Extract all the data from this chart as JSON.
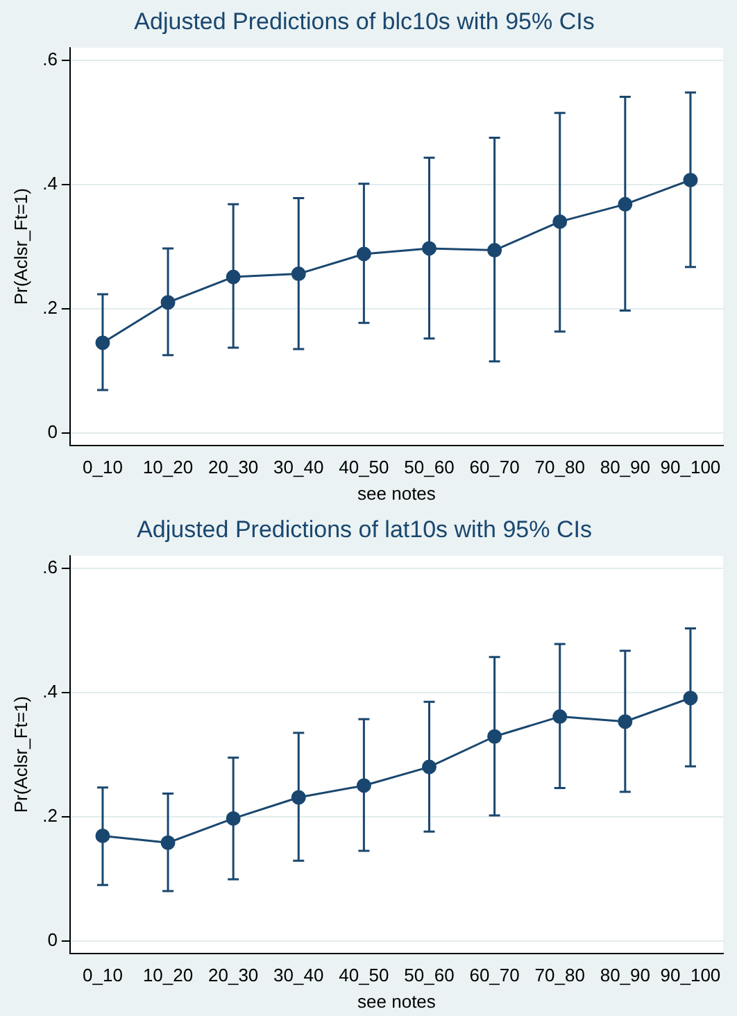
{
  "chart_data": [
    {
      "type": "line",
      "title": "Adjusted Predictions of blc10s with 95% CIs",
      "xlabel": "see notes",
      "ylabel": "Pr(Aclsr_Ft=1)",
      "categories": [
        "0_10",
        "10_20",
        "20_30",
        "30_40",
        "40_50",
        "50_60",
        "60_70",
        "70_80",
        "80_90",
        "90_100"
      ],
      "series": [
        {
          "color": "#1a476f",
          "values": [
            0.145,
            0.21,
            0.251,
            0.256,
            0.288,
            0.297,
            0.294,
            0.34,
            0.368,
            0.407
          ],
          "errors": [
            [
              0.069,
              0.223
            ],
            [
              0.125,
              0.297
            ],
            [
              0.137,
              0.368
            ],
            [
              0.135,
              0.378
            ],
            [
              0.177,
              0.401
            ],
            [
              0.152,
              0.443
            ],
            [
              0.115,
              0.475
            ],
            [
              0.163,
              0.515
            ],
            [
              0.197,
              0.541
            ],
            [
              0.267,
              0.548
            ]
          ]
        }
      ],
      "ylim": [
        -0.02,
        0.62
      ],
      "yticks": [
        0,
        {
          "value": 0.2,
          "label": ".2"
        },
        {
          "value": 0.4,
          "label": ".4"
        },
        {
          "value": 0.6,
          "label": ".6"
        }
      ],
      "grid": "y",
      "marker": "circle",
      "line_style": "solid"
    },
    {
      "type": "line",
      "title": "Adjusted Predictions of lat10s with 95% CIs",
      "xlabel": "see notes",
      "ylabel": "Pr(Aclsr_Ft=1)",
      "categories": [
        "0_10",
        "10_20",
        "20_30",
        "30_40",
        "40_50",
        "50_60",
        "60_70",
        "70_80",
        "80_90",
        "90_100"
      ],
      "series": [
        {
          "color": "#1a476f",
          "values": [
            0.169,
            0.158,
            0.197,
            0.231,
            0.25,
            0.28,
            0.329,
            0.361,
            0.353,
            0.391
          ],
          "errors": [
            [
              0.09,
              0.247
            ],
            [
              0.08,
              0.237
            ],
            [
              0.099,
              0.295
            ],
            [
              0.129,
              0.335
            ],
            [
              0.145,
              0.357
            ],
            [
              0.176,
              0.385
            ],
            [
              0.202,
              0.457
            ],
            [
              0.246,
              0.478
            ],
            [
              0.24,
              0.467
            ],
            [
              0.281,
              0.503
            ]
          ]
        }
      ],
      "ylim": [
        -0.02,
        0.62
      ],
      "yticks": [
        0,
        {
          "value": 0.2,
          "label": ".2"
        },
        {
          "value": 0.4,
          "label": ".4"
        },
        {
          "value": 0.6,
          "label": ".6"
        }
      ],
      "grid": "y",
      "marker": "circle",
      "line_style": "solid"
    }
  ]
}
